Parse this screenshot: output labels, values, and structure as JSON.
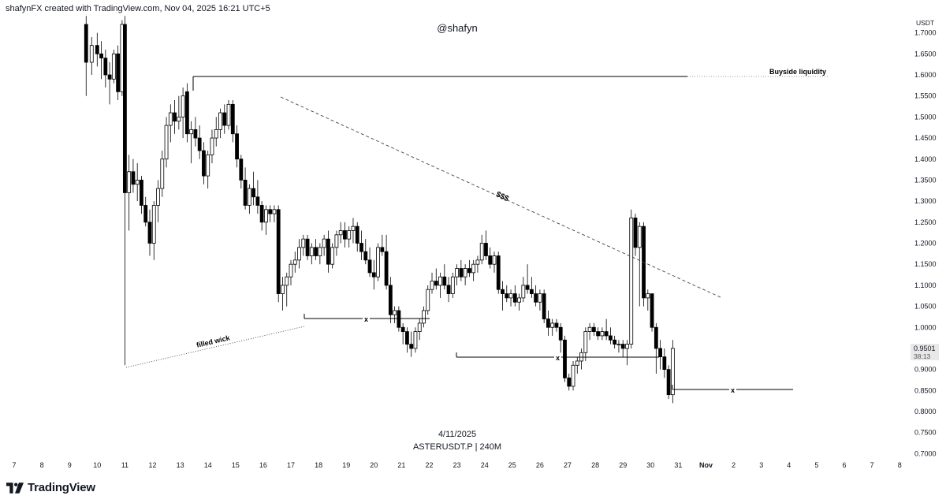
{
  "header": {
    "credit": "shafynFX created with TradingView.com, Nov 04, 2025 16:21 UTC+5"
  },
  "footer": {
    "brand": "TradingView",
    "date": "4/11/2025",
    "symbol": "ASTERUSDT.P | 240M"
  },
  "colors": {
    "up_candle": "#ffffff",
    "down_candle": "#000000",
    "candle_outline": "#000000",
    "price_badge_bg": "#e8e8e8"
  },
  "chart_data": {
    "type": "candlestick",
    "symbol": "ASTERUSDT.P",
    "timeframe": "240M",
    "price_scale": {
      "currency": "USDT",
      "ticks": [
        "1.7000",
        "1.6500",
        "1.6000",
        "1.5500",
        "1.5000",
        "1.4500",
        "1.4000",
        "1.3500",
        "1.3000",
        "1.2500",
        "1.2000",
        "1.1500",
        "1.1000",
        "1.0500",
        "1.0000",
        "0.9500",
        "0.9000",
        "0.8500",
        "0.8000",
        "0.7500",
        "0.7000"
      ],
      "ylim": [
        0.7,
        1.73
      ]
    },
    "time_axis": {
      "labels": [
        "7",
        "8",
        "9",
        "10",
        "11",
        "12",
        "13",
        "14",
        "15",
        "16",
        "17",
        "18",
        "19",
        "20",
        "21",
        "22",
        "23",
        "24",
        "25",
        "26",
        "27",
        "28",
        "29",
        "30",
        "31",
        "Nov",
        "2",
        "3",
        "4",
        "5",
        "6",
        "7",
        "8"
      ],
      "day_ticks": [
        7,
        8,
        9,
        10,
        11,
        12,
        13,
        14,
        15,
        16,
        17,
        18,
        19,
        20,
        21,
        22,
        23,
        24,
        25,
        26,
        27,
        28,
        29,
        30,
        31,
        32,
        33,
        34,
        35,
        36,
        37,
        38,
        39
      ]
    },
    "current_price": {
      "value": "0.9501",
      "countdown": "38:13"
    },
    "watermark": "@shafyn",
    "candles": [
      {
        "d": 9.6,
        "o": 1.72,
        "h": 1.74,
        "l": 1.55,
        "c": 1.63
      },
      {
        "d": 9.8,
        "o": 1.63,
        "h": 1.69,
        "l": 1.6,
        "c": 1.67
      },
      {
        "d": 10.0,
        "o": 1.67,
        "h": 1.7,
        "l": 1.62,
        "c": 1.65
      },
      {
        "d": 10.15,
        "o": 1.65,
        "h": 1.68,
        "l": 1.59,
        "c": 1.64
      },
      {
        "d": 10.3,
        "o": 1.64,
        "h": 1.66,
        "l": 1.57,
        "c": 1.6
      },
      {
        "d": 10.45,
        "o": 1.6,
        "h": 1.63,
        "l": 1.53,
        "c": 1.59
      },
      {
        "d": 10.6,
        "o": 1.59,
        "h": 1.66,
        "l": 1.58,
        "c": 1.65
      },
      {
        "d": 10.75,
        "o": 1.65,
        "h": 1.67,
        "l": 1.54,
        "c": 1.56
      },
      {
        "d": 10.9,
        "o": 1.56,
        "h": 1.73,
        "l": 1.55,
        "c": 1.72
      },
      {
        "d": 11.0,
        "o": 1.72,
        "h": 1.74,
        "l": 0.91,
        "c": 1.32
      },
      {
        "d": 11.15,
        "o": 1.32,
        "h": 1.41,
        "l": 1.23,
        "c": 1.37
      },
      {
        "d": 11.3,
        "o": 1.37,
        "h": 1.4,
        "l": 1.32,
        "c": 1.34
      },
      {
        "d": 11.45,
        "o": 1.34,
        "h": 1.39,
        "l": 1.3,
        "c": 1.35
      },
      {
        "d": 11.6,
        "o": 1.35,
        "h": 1.36,
        "l": 1.27,
        "c": 1.29
      },
      {
        "d": 11.75,
        "o": 1.29,
        "h": 1.31,
        "l": 1.24,
        "c": 1.25
      },
      {
        "d": 11.9,
        "o": 1.25,
        "h": 1.28,
        "l": 1.17,
        "c": 1.2
      },
      {
        "d": 12.05,
        "o": 1.2,
        "h": 1.3,
        "l": 1.16,
        "c": 1.29
      },
      {
        "d": 12.2,
        "o": 1.29,
        "h": 1.35,
        "l": 1.25,
        "c": 1.33
      },
      {
        "d": 12.35,
        "o": 1.33,
        "h": 1.42,
        "l": 1.31,
        "c": 1.4
      },
      {
        "d": 12.5,
        "o": 1.4,
        "h": 1.5,
        "l": 1.38,
        "c": 1.48
      },
      {
        "d": 12.65,
        "o": 1.48,
        "h": 1.53,
        "l": 1.44,
        "c": 1.51
      },
      {
        "d": 12.8,
        "o": 1.51,
        "h": 1.54,
        "l": 1.46,
        "c": 1.49
      },
      {
        "d": 12.95,
        "o": 1.49,
        "h": 1.55,
        "l": 1.47,
        "c": 1.5
      },
      {
        "d": 13.1,
        "o": 1.5,
        "h": 1.57,
        "l": 1.45,
        "c": 1.55
      },
      {
        "d": 13.25,
        "o": 1.56,
        "h": 1.58,
        "l": 1.44,
        "c": 1.46
      },
      {
        "d": 13.4,
        "o": 1.46,
        "h": 1.49,
        "l": 1.39,
        "c": 1.47
      },
      {
        "d": 13.55,
        "o": 1.47,
        "h": 1.5,
        "l": 1.43,
        "c": 1.45
      },
      {
        "d": 13.7,
        "o": 1.45,
        "h": 1.48,
        "l": 1.4,
        "c": 1.42
      },
      {
        "d": 13.85,
        "o": 1.42,
        "h": 1.44,
        "l": 1.34,
        "c": 1.36
      },
      {
        "d": 14.0,
        "o": 1.36,
        "h": 1.42,
        "l": 1.33,
        "c": 1.41
      },
      {
        "d": 14.15,
        "o": 1.41,
        "h": 1.47,
        "l": 1.39,
        "c": 1.45
      },
      {
        "d": 14.3,
        "o": 1.45,
        "h": 1.5,
        "l": 1.43,
        "c": 1.47
      },
      {
        "d": 14.45,
        "o": 1.47,
        "h": 1.52,
        "l": 1.45,
        "c": 1.51
      },
      {
        "d": 14.6,
        "o": 1.51,
        "h": 1.53,
        "l": 1.46,
        "c": 1.48
      },
      {
        "d": 14.75,
        "o": 1.48,
        "h": 1.54,
        "l": 1.47,
        "c": 1.53
      },
      {
        "d": 14.9,
        "o": 1.53,
        "h": 1.54,
        "l": 1.44,
        "c": 1.46
      },
      {
        "d": 15.05,
        "o": 1.46,
        "h": 1.48,
        "l": 1.38,
        "c": 1.4
      },
      {
        "d": 15.2,
        "o": 1.4,
        "h": 1.41,
        "l": 1.33,
        "c": 1.35
      },
      {
        "d": 15.35,
        "o": 1.35,
        "h": 1.38,
        "l": 1.28,
        "c": 1.29
      },
      {
        "d": 15.5,
        "o": 1.29,
        "h": 1.34,
        "l": 1.27,
        "c": 1.33
      },
      {
        "d": 15.65,
        "o": 1.33,
        "h": 1.37,
        "l": 1.29,
        "c": 1.31
      },
      {
        "d": 15.8,
        "o": 1.31,
        "h": 1.35,
        "l": 1.27,
        "c": 1.29
      },
      {
        "d": 15.95,
        "o": 1.29,
        "h": 1.3,
        "l": 1.23,
        "c": 1.25
      },
      {
        "d": 16.1,
        "o": 1.25,
        "h": 1.29,
        "l": 1.22,
        "c": 1.28
      },
      {
        "d": 16.25,
        "o": 1.28,
        "h": 1.29,
        "l": 1.25,
        "c": 1.27
      },
      {
        "d": 16.4,
        "o": 1.27,
        "h": 1.29,
        "l": 1.25,
        "c": 1.28
      },
      {
        "d": 16.55,
        "o": 1.28,
        "h": 1.29,
        "l": 1.06,
        "c": 1.08
      },
      {
        "d": 16.7,
        "o": 1.08,
        "h": 1.12,
        "l": 1.04,
        "c": 1.1
      },
      {
        "d": 16.85,
        "o": 1.1,
        "h": 1.13,
        "l": 1.05,
        "c": 1.12
      },
      {
        "d": 17.0,
        "o": 1.12,
        "h": 1.16,
        "l": 1.1,
        "c": 1.15
      },
      {
        "d": 17.15,
        "o": 1.15,
        "h": 1.18,
        "l": 1.13,
        "c": 1.16
      },
      {
        "d": 17.3,
        "o": 1.16,
        "h": 1.21,
        "l": 1.14,
        "c": 1.19
      },
      {
        "d": 17.45,
        "o": 1.19,
        "h": 1.22,
        "l": 1.17,
        "c": 1.21
      },
      {
        "d": 17.6,
        "o": 1.21,
        "h": 1.22,
        "l": 1.16,
        "c": 1.17
      },
      {
        "d": 17.75,
        "o": 1.17,
        "h": 1.2,
        "l": 1.15,
        "c": 1.19
      },
      {
        "d": 17.9,
        "o": 1.19,
        "h": 1.21,
        "l": 1.16,
        "c": 1.17
      },
      {
        "d": 18.05,
        "o": 1.17,
        "h": 1.2,
        "l": 1.15,
        "c": 1.19
      },
      {
        "d": 18.2,
        "o": 1.19,
        "h": 1.22,
        "l": 1.17,
        "c": 1.21
      },
      {
        "d": 18.35,
        "o": 1.21,
        "h": 1.23,
        "l": 1.13,
        "c": 1.15
      },
      {
        "d": 18.5,
        "o": 1.15,
        "h": 1.2,
        "l": 1.14,
        "c": 1.19
      },
      {
        "d": 18.65,
        "o": 1.19,
        "h": 1.23,
        "l": 1.17,
        "c": 1.22
      },
      {
        "d": 18.8,
        "o": 1.22,
        "h": 1.25,
        "l": 1.2,
        "c": 1.23
      },
      {
        "d": 18.95,
        "o": 1.23,
        "h": 1.25,
        "l": 1.19,
        "c": 1.21
      },
      {
        "d": 19.1,
        "o": 1.21,
        "h": 1.24,
        "l": 1.19,
        "c": 1.23
      },
      {
        "d": 19.25,
        "o": 1.23,
        "h": 1.26,
        "l": 1.2,
        "c": 1.24
      },
      {
        "d": 19.4,
        "o": 1.24,
        "h": 1.25,
        "l": 1.18,
        "c": 1.2
      },
      {
        "d": 19.55,
        "o": 1.2,
        "h": 1.23,
        "l": 1.16,
        "c": 1.18
      },
      {
        "d": 19.7,
        "o": 1.18,
        "h": 1.21,
        "l": 1.15,
        "c": 1.16
      },
      {
        "d": 19.85,
        "o": 1.16,
        "h": 1.19,
        "l": 1.12,
        "c": 1.13
      },
      {
        "d": 20.0,
        "o": 1.13,
        "h": 1.16,
        "l": 1.09,
        "c": 1.12
      },
      {
        "d": 20.15,
        "o": 1.12,
        "h": 1.2,
        "l": 1.11,
        "c": 1.19
      },
      {
        "d": 20.3,
        "o": 1.19,
        "h": 1.22,
        "l": 1.17,
        "c": 1.18
      },
      {
        "d": 20.45,
        "o": 1.18,
        "h": 1.22,
        "l": 1.09,
        "c": 1.1
      },
      {
        "d": 20.6,
        "o": 1.1,
        "h": 1.12,
        "l": 1.01,
        "c": 1.03
      },
      {
        "d": 20.75,
        "o": 1.03,
        "h": 1.05,
        "l": 1.01,
        "c": 1.04
      },
      {
        "d": 20.9,
        "o": 1.04,
        "h": 1.05,
        "l": 0.99,
        "c": 1.0
      },
      {
        "d": 21.05,
        "o": 1.0,
        "h": 1.01,
        "l": 0.96,
        "c": 0.99
      },
      {
        "d": 21.2,
        "o": 0.99,
        "h": 1.0,
        "l": 0.94,
        "c": 0.96
      },
      {
        "d": 21.35,
        "o": 0.96,
        "h": 0.99,
        "l": 0.93,
        "c": 0.95
      },
      {
        "d": 21.5,
        "o": 0.95,
        "h": 1.0,
        "l": 0.94,
        "c": 0.99
      },
      {
        "d": 21.65,
        "o": 0.99,
        "h": 1.02,
        "l": 0.97,
        "c": 1.01
      },
      {
        "d": 21.8,
        "o": 1.01,
        "h": 1.05,
        "l": 1.0,
        "c": 1.04
      },
      {
        "d": 21.95,
        "o": 1.04,
        "h": 1.1,
        "l": 1.03,
        "c": 1.09
      },
      {
        "d": 22.1,
        "o": 1.09,
        "h": 1.13,
        "l": 1.08,
        "c": 1.11
      },
      {
        "d": 22.25,
        "o": 1.11,
        "h": 1.14,
        "l": 1.09,
        "c": 1.1
      },
      {
        "d": 22.4,
        "o": 1.1,
        "h": 1.13,
        "l": 1.07,
        "c": 1.12
      },
      {
        "d": 22.55,
        "o": 1.12,
        "h": 1.15,
        "l": 1.09,
        "c": 1.1
      },
      {
        "d": 22.7,
        "o": 1.1,
        "h": 1.12,
        "l": 1.06,
        "c": 1.08
      },
      {
        "d": 22.85,
        "o": 1.08,
        "h": 1.13,
        "l": 1.07,
        "c": 1.12
      },
      {
        "d": 23.0,
        "o": 1.12,
        "h": 1.15,
        "l": 1.1,
        "c": 1.14
      },
      {
        "d": 23.15,
        "o": 1.14,
        "h": 1.16,
        "l": 1.11,
        "c": 1.12
      },
      {
        "d": 23.3,
        "o": 1.12,
        "h": 1.15,
        "l": 1.1,
        "c": 1.14
      },
      {
        "d": 23.45,
        "o": 1.14,
        "h": 1.16,
        "l": 1.12,
        "c": 1.13
      },
      {
        "d": 23.6,
        "o": 1.13,
        "h": 1.16,
        "l": 1.11,
        "c": 1.15
      },
      {
        "d": 23.75,
        "o": 1.15,
        "h": 1.17,
        "l": 1.13,
        "c": 1.16
      },
      {
        "d": 23.9,
        "o": 1.16,
        "h": 1.22,
        "l": 1.15,
        "c": 1.2
      },
      {
        "d": 24.05,
        "o": 1.2,
        "h": 1.23,
        "l": 1.16,
        "c": 1.17
      },
      {
        "d": 24.2,
        "o": 1.17,
        "h": 1.19,
        "l": 1.14,
        "c": 1.15
      },
      {
        "d": 24.35,
        "o": 1.15,
        "h": 1.18,
        "l": 1.13,
        "c": 1.17
      },
      {
        "d": 24.5,
        "o": 1.17,
        "h": 1.18,
        "l": 1.08,
        "c": 1.09
      },
      {
        "d": 24.65,
        "o": 1.09,
        "h": 1.11,
        "l": 1.04,
        "c": 1.08
      },
      {
        "d": 24.8,
        "o": 1.08,
        "h": 1.1,
        "l": 1.06,
        "c": 1.07
      },
      {
        "d": 24.95,
        "o": 1.07,
        "h": 1.09,
        "l": 1.05,
        "c": 1.08
      },
      {
        "d": 25.1,
        "o": 1.08,
        "h": 1.1,
        "l": 1.05,
        "c": 1.06
      },
      {
        "d": 25.25,
        "o": 1.06,
        "h": 1.08,
        "l": 1.04,
        "c": 1.07
      },
      {
        "d": 25.4,
        "o": 1.07,
        "h": 1.12,
        "l": 1.06,
        "c": 1.1
      },
      {
        "d": 25.55,
        "o": 1.1,
        "h": 1.15,
        "l": 1.08,
        "c": 1.09
      },
      {
        "d": 25.7,
        "o": 1.09,
        "h": 1.12,
        "l": 1.07,
        "c": 1.08
      },
      {
        "d": 25.85,
        "o": 1.08,
        "h": 1.1,
        "l": 1.05,
        "c": 1.06
      },
      {
        "d": 26.0,
        "o": 1.06,
        "h": 1.09,
        "l": 1.04,
        "c": 1.08
      },
      {
        "d": 26.15,
        "o": 1.08,
        "h": 1.09,
        "l": 1.01,
        "c": 1.02
      },
      {
        "d": 26.3,
        "o": 1.02,
        "h": 1.04,
        "l": 0.98,
        "c": 1.0
      },
      {
        "d": 26.45,
        "o": 1.0,
        "h": 1.02,
        "l": 0.98,
        "c": 1.01
      },
      {
        "d": 26.6,
        "o": 1.01,
        "h": 1.02,
        "l": 0.99,
        "c": 1.0
      },
      {
        "d": 26.75,
        "o": 1.0,
        "h": 1.01,
        "l": 0.94,
        "c": 0.97
      },
      {
        "d": 26.9,
        "o": 0.97,
        "h": 0.98,
        "l": 0.87,
        "c": 0.88
      },
      {
        "d": 27.05,
        "o": 0.88,
        "h": 0.89,
        "l": 0.85,
        "c": 0.86
      },
      {
        "d": 27.2,
        "o": 0.86,
        "h": 0.92,
        "l": 0.85,
        "c": 0.91
      },
      {
        "d": 27.35,
        "o": 0.91,
        "h": 0.93,
        "l": 0.89,
        "c": 0.92
      },
      {
        "d": 27.5,
        "o": 0.92,
        "h": 0.95,
        "l": 0.9,
        "c": 0.94
      },
      {
        "d": 27.65,
        "o": 0.94,
        "h": 1.0,
        "l": 0.92,
        "c": 0.99
      },
      {
        "d": 27.8,
        "o": 0.99,
        "h": 1.01,
        "l": 0.97,
        "c": 1.0
      },
      {
        "d": 27.95,
        "o": 1.0,
        "h": 1.01,
        "l": 0.98,
        "c": 0.99
      },
      {
        "d": 28.1,
        "o": 0.99,
        "h": 1.0,
        "l": 0.97,
        "c": 0.98
      },
      {
        "d": 28.25,
        "o": 0.98,
        "h": 1.0,
        "l": 0.97,
        "c": 0.99
      },
      {
        "d": 28.4,
        "o": 0.99,
        "h": 1.02,
        "l": 0.97,
        "c": 0.98
      },
      {
        "d": 28.55,
        "o": 0.98,
        "h": 1.0,
        "l": 0.96,
        "c": 0.97
      },
      {
        "d": 28.7,
        "o": 0.97,
        "h": 0.98,
        "l": 0.95,
        "c": 0.96
      },
      {
        "d": 28.85,
        "o": 0.96,
        "h": 0.97,
        "l": 0.94,
        "c": 0.96
      },
      {
        "d": 29.0,
        "o": 0.96,
        "h": 0.97,
        "l": 0.93,
        "c": 0.95
      },
      {
        "d": 29.15,
        "o": 0.95,
        "h": 0.97,
        "l": 0.91,
        "c": 0.96
      },
      {
        "d": 29.3,
        "o": 0.96,
        "h": 1.28,
        "l": 0.95,
        "c": 1.26
      },
      {
        "d": 29.45,
        "o": 1.26,
        "h": 1.27,
        "l": 1.17,
        "c": 1.19
      },
      {
        "d": 29.6,
        "o": 1.19,
        "h": 1.25,
        "l": 1.05,
        "c": 1.24
      },
      {
        "d": 29.75,
        "o": 1.24,
        "h": 1.25,
        "l": 1.05,
        "c": 1.07
      },
      {
        "d": 29.9,
        "o": 1.07,
        "h": 1.09,
        "l": 1.04,
        "c": 1.08
      },
      {
        "d": 30.05,
        "o": 1.08,
        "h": 1.08,
        "l": 0.99,
        "c": 1.0
      },
      {
        "d": 30.2,
        "o": 1.0,
        "h": 1.01,
        "l": 0.89,
        "c": 0.95
      },
      {
        "d": 30.35,
        "o": 0.95,
        "h": 0.97,
        "l": 0.9,
        "c": 0.93
      },
      {
        "d": 30.5,
        "o": 0.93,
        "h": 0.95,
        "l": 0.88,
        "c": 0.9
      },
      {
        "d": 30.65,
        "o": 0.9,
        "h": 0.91,
        "l": 0.83,
        "c": 0.84
      },
      {
        "d": 30.8,
        "o": 0.84,
        "h": 0.97,
        "l": 0.82,
        "c": 0.95
      }
    ]
  },
  "annotations": {
    "buyside_label": "Buyside liquidity",
    "sss_label": "$$$",
    "filled_wick_label": "filled wick",
    "x_marker_1": "x",
    "x_marker_2": "x",
    "x_marker_3": "x"
  }
}
